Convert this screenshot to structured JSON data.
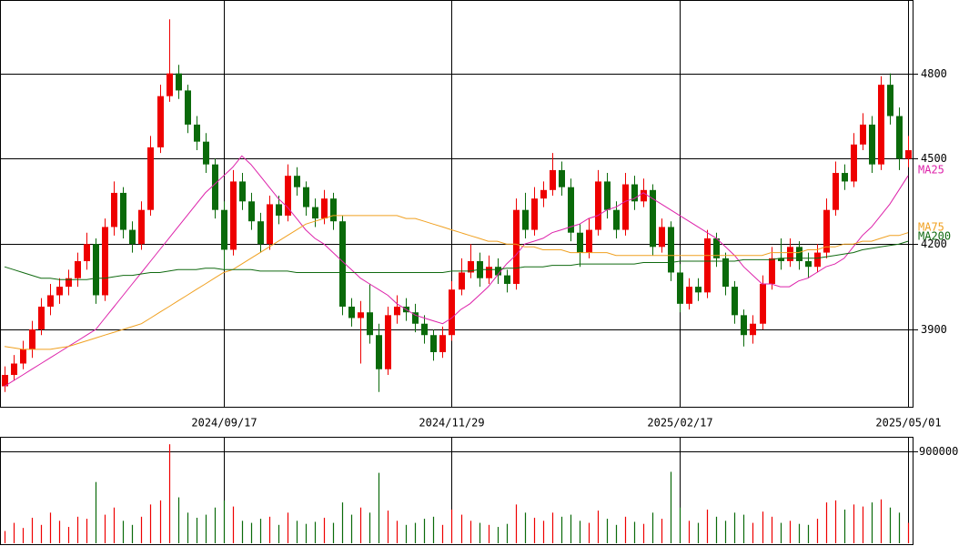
{
  "chart_data": {
    "type": "candlestick",
    "categories": [
      null,
      null,
      null,
      null,
      null,
      null,
      null,
      null,
      null,
      null,
      null,
      null,
      null,
      null,
      null,
      null,
      null,
      null,
      null,
      null,
      null,
      null,
      null,
      null,
      "2024/09/17",
      null,
      null,
      null,
      null,
      null,
      null,
      null,
      null,
      null,
      null,
      null,
      null,
      null,
      null,
      null,
      null,
      null,
      null,
      null,
      null,
      null,
      null,
      null,
      null,
      "2024/11/29",
      null,
      null,
      null,
      null,
      null,
      null,
      null,
      null,
      null,
      null,
      null,
      null,
      null,
      null,
      null,
      null,
      null,
      null,
      null,
      null,
      null,
      null,
      null,
      null,
      "2025/02/17",
      null,
      null,
      null,
      null,
      null,
      null,
      null,
      null,
      null,
      null,
      null,
      null,
      null,
      null,
      null,
      null,
      null,
      null,
      null,
      null,
      null,
      null,
      null,
      null,
      "2025/05/01"
    ],
    "ohlc": [
      [
        3700,
        3770,
        3680,
        3740
      ],
      [
        3740,
        3810,
        3720,
        3780
      ],
      [
        3780,
        3860,
        3760,
        3830
      ],
      [
        3830,
        3930,
        3800,
        3900
      ],
      [
        3900,
        4010,
        3880,
        3980
      ],
      [
        3980,
        4060,
        3950,
        4020
      ],
      [
        4020,
        4080,
        3990,
        4050
      ],
      [
        4050,
        4110,
        4020,
        4080
      ],
      [
        4080,
        4170,
        4050,
        4140
      ],
      [
        4140,
        4240,
        4110,
        4200
      ],
      [
        4200,
        4220,
        3990,
        4020
      ],
      [
        4020,
        4290,
        4000,
        4260
      ],
      [
        4260,
        4420,
        4230,
        4380
      ],
      [
        4380,
        4400,
        4220,
        4250
      ],
      [
        4250,
        4280,
        4170,
        4200
      ],
      [
        4200,
        4350,
        4180,
        4320
      ],
      [
        4320,
        4580,
        4300,
        4540
      ],
      [
        4540,
        4760,
        4520,
        4720
      ],
      [
        4720,
        4990,
        4700,
        4800
      ],
      [
        4800,
        4830,
        4710,
        4740
      ],
      [
        4740,
        4760,
        4590,
        4620
      ],
      [
        4620,
        4650,
        4530,
        4560
      ],
      [
        4560,
        4590,
        4450,
        4480
      ],
      [
        4480,
        4500,
        4290,
        4320
      ],
      [
        4320,
        4350,
        4110,
        4180
      ],
      [
        4180,
        4460,
        4160,
        4420
      ],
      [
        4420,
        4450,
        4320,
        4350
      ],
      [
        4350,
        4380,
        4250,
        4280
      ],
      [
        4280,
        4310,
        4170,
        4200
      ],
      [
        4200,
        4370,
        4180,
        4340
      ],
      [
        4340,
        4370,
        4270,
        4300
      ],
      [
        4300,
        4480,
        4280,
        4440
      ],
      [
        4440,
        4470,
        4370,
        4400
      ],
      [
        4400,
        4420,
        4300,
        4330
      ],
      [
        4330,
        4360,
        4260,
        4290
      ],
      [
        4290,
        4390,
        4270,
        4360
      ],
      [
        4360,
        4380,
        4250,
        4280
      ],
      [
        4280,
        4300,
        3950,
        3980
      ],
      [
        3980,
        4010,
        3910,
        3940
      ],
      [
        3940,
        4000,
        3780,
        3960
      ],
      [
        3960,
        4060,
        3850,
        3880
      ],
      [
        3880,
        3920,
        3680,
        3760
      ],
      [
        3760,
        3980,
        3740,
        3950
      ],
      [
        3950,
        4020,
        3920,
        3980
      ],
      [
        3980,
        4010,
        3930,
        3960
      ],
      [
        3960,
        3990,
        3890,
        3920
      ],
      [
        3920,
        3950,
        3850,
        3880
      ],
      [
        3880,
        3900,
        3790,
        3820
      ],
      [
        3820,
        3910,
        3800,
        3880
      ],
      [
        3880,
        4070,
        3860,
        4040
      ],
      [
        4040,
        4150,
        4020,
        4100
      ],
      [
        4100,
        4200,
        4080,
        4140
      ],
      [
        4140,
        4170,
        4050,
        4080
      ],
      [
        4080,
        4160,
        4060,
        4120
      ],
      [
        4120,
        4150,
        4060,
        4090
      ],
      [
        4090,
        4110,
        4030,
        4060
      ],
      [
        4060,
        4360,
        4040,
        4320
      ],
      [
        4320,
        4380,
        4220,
        4250
      ],
      [
        4250,
        4400,
        4230,
        4360
      ],
      [
        4360,
        4420,
        4330,
        4390
      ],
      [
        4390,
        4520,
        4370,
        4460
      ],
      [
        4460,
        4490,
        4370,
        4400
      ],
      [
        4400,
        4430,
        4210,
        4240
      ],
      [
        4240,
        4270,
        4120,
        4170
      ],
      [
        4170,
        4290,
        4150,
        4250
      ],
      [
        4250,
        4460,
        4230,
        4420
      ],
      [
        4420,
        4450,
        4290,
        4320
      ],
      [
        4320,
        4350,
        4220,
        4250
      ],
      [
        4250,
        4450,
        4230,
        4410
      ],
      [
        4410,
        4440,
        4320,
        4350
      ],
      [
        4350,
        4430,
        4330,
        4390
      ],
      [
        4390,
        4410,
        4160,
        4190
      ],
      [
        4190,
        4290,
        4170,
        4260
      ],
      [
        4260,
        4280,
        4070,
        4100
      ],
      [
        4100,
        4130,
        3960,
        3990
      ],
      [
        3990,
        4080,
        3970,
        4050
      ],
      [
        4050,
        4080,
        4000,
        4030
      ],
      [
        4030,
        4250,
        4010,
        4220
      ],
      [
        4220,
        4240,
        4120,
        4150
      ],
      [
        4150,
        4170,
        4020,
        4050
      ],
      [
        4050,
        4070,
        3920,
        3950
      ],
      [
        3950,
        3970,
        3840,
        3880
      ],
      [
        3880,
        3950,
        3850,
        3920
      ],
      [
        3920,
        4090,
        3900,
        4060
      ],
      [
        4060,
        4190,
        4040,
        4150
      ],
      [
        4150,
        4220,
        4110,
        4140
      ],
      [
        4140,
        4220,
        4120,
        4190
      ],
      [
        4190,
        4210,
        4110,
        4140
      ],
      [
        4140,
        4170,
        4080,
        4120
      ],
      [
        4120,
        4200,
        4100,
        4170
      ],
      [
        4170,
        4360,
        4150,
        4320
      ],
      [
        4320,
        4490,
        4300,
        4450
      ],
      [
        4450,
        4480,
        4390,
        4420
      ],
      [
        4420,
        4590,
        4400,
        4550
      ],
      [
        4550,
        4660,
        4530,
        4620
      ],
      [
        4620,
        4650,
        4450,
        4480
      ],
      [
        4480,
        4790,
        4460,
        4760
      ],
      [
        4760,
        4800,
        4620,
        4650
      ],
      [
        4650,
        4680,
        4460,
        4500
      ],
      [
        4500,
        4580,
        4470,
        4530
      ]
    ],
    "volume": [
      120000,
      200000,
      150000,
      250000,
      180000,
      300000,
      220000,
      160000,
      260000,
      240000,
      600000,
      280000,
      350000,
      220000,
      180000,
      260000,
      380000,
      420000,
      970000,
      450000,
      300000,
      250000,
      280000,
      350000,
      420000,
      360000,
      220000,
      200000,
      240000,
      260000,
      180000,
      300000,
      220000,
      190000,
      210000,
      250000,
      200000,
      400000,
      280000,
      350000,
      300000,
      690000,
      320000,
      220000,
      180000,
      200000,
      240000,
      260000,
      180000,
      330000,
      280000,
      220000,
      200000,
      180000,
      160000,
      190000,
      380000,
      300000,
      250000,
      220000,
      300000,
      260000,
      280000,
      220000,
      200000,
      320000,
      240000,
      180000,
      260000,
      210000,
      190000,
      300000,
      240000,
      700000,
      350000,
      220000,
      200000,
      330000,
      260000,
      220000,
      300000,
      280000,
      200000,
      310000,
      260000,
      200000,
      220000,
      190000,
      180000,
      240000,
      400000,
      420000,
      330000,
      380000,
      360000,
      400000,
      430000,
      350000,
      300000,
      200000
    ],
    "up_color": "#ee0000",
    "down_color": "#0a6a0a",
    "ylim": [
      3628,
      5058
    ],
    "yticks": [
      3900,
      4200,
      4500,
      4800
    ],
    "volume_ylim": [
      0,
      1043000
    ],
    "volume_yticks": [
      900000
    ],
    "grid": true,
    "series": [
      {
        "name": "MA25",
        "color": "#dd22aa",
        "values": [
          3700,
          3720,
          3740,
          3760,
          3780,
          3800,
          3820,
          3840,
          3860,
          3880,
          3900,
          3940,
          3980,
          4020,
          4060,
          4100,
          4140,
          4180,
          4220,
          4260,
          4300,
          4340,
          4380,
          4410,
          4440,
          4470,
          4510,
          4480,
          4440,
          4400,
          4360,
          4330,
          4290,
          4250,
          4220,
          4200,
          4170,
          4140,
          4110,
          4080,
          4060,
          4040,
          4020,
          3990,
          3970,
          3950,
          3940,
          3930,
          3920,
          3940,
          3970,
          3990,
          4020,
          4050,
          4090,
          4130,
          4160,
          4200,
          4210,
          4220,
          4240,
          4250,
          4260,
          4270,
          4290,
          4300,
          4320,
          4330,
          4350,
          4360,
          4380,
          4360,
          4340,
          4320,
          4300,
          4280,
          4260,
          4240,
          4220,
          4190,
          4160,
          4120,
          4090,
          4060,
          4060,
          4050,
          4050,
          4070,
          4080,
          4100,
          4120,
          4130,
          4150,
          4190,
          4230,
          4260,
          4300,
          4340,
          4390,
          4440
        ]
      },
      {
        "name": "MA75",
        "color": "#f0a020",
        "values": [
          3840,
          3835,
          3830,
          3830,
          3830,
          3830,
          3835,
          3840,
          3850,
          3860,
          3870,
          3880,
          3890,
          3900,
          3910,
          3920,
          3940,
          3960,
          3980,
          4000,
          4020,
          4040,
          4060,
          4080,
          4100,
          4110,
          4130,
          4150,
          4170,
          4190,
          4210,
          4230,
          4250,
          4270,
          4280,
          4290,
          4300,
          4300,
          4300,
          4300,
          4300,
          4300,
          4300,
          4300,
          4290,
          4290,
          4280,
          4270,
          4260,
          4250,
          4240,
          4230,
          4220,
          4210,
          4210,
          4200,
          4200,
          4190,
          4190,
          4180,
          4180,
          4180,
          4170,
          4170,
          4170,
          4170,
          4170,
          4160,
          4160,
          4160,
          4160,
          4160,
          4160,
          4160,
          4160,
          4160,
          4160,
          4160,
          4160,
          4160,
          4160,
          4160,
          4160,
          4160,
          4170,
          4170,
          4170,
          4170,
          4180,
          4180,
          4190,
          4190,
          4200,
          4200,
          4210,
          4210,
          4220,
          4230,
          4230,
          4240
        ]
      },
      {
        "name": "MA200",
        "color": "#106a10",
        "values": [
          4120,
          4110,
          4100,
          4090,
          4080,
          4080,
          4075,
          4075,
          4075,
          4075,
          4080,
          4080,
          4085,
          4090,
          4090,
          4095,
          4100,
          4100,
          4105,
          4110,
          4110,
          4110,
          4115,
          4115,
          4110,
          4110,
          4110,
          4110,
          4105,
          4105,
          4105,
          4105,
          4100,
          4100,
          4100,
          4100,
          4100,
          4100,
          4100,
          4100,
          4100,
          4100,
          4100,
          4100,
          4100,
          4100,
          4100,
          4100,
          4100,
          4105,
          4105,
          4105,
          4110,
          4110,
          4110,
          4115,
          4115,
          4120,
          4120,
          4120,
          4125,
          4125,
          4125,
          4130,
          4130,
          4130,
          4130,
          4130,
          4130,
          4130,
          4135,
          4135,
          4135,
          4135,
          4140,
          4140,
          4140,
          4140,
          4140,
          4140,
          4140,
          4145,
          4145,
          4145,
          4145,
          4150,
          4150,
          4150,
          4150,
          4150,
          4155,
          4160,
          4165,
          4170,
          4180,
          4185,
          4190,
          4195,
          4200,
          4210
        ]
      }
    ]
  }
}
